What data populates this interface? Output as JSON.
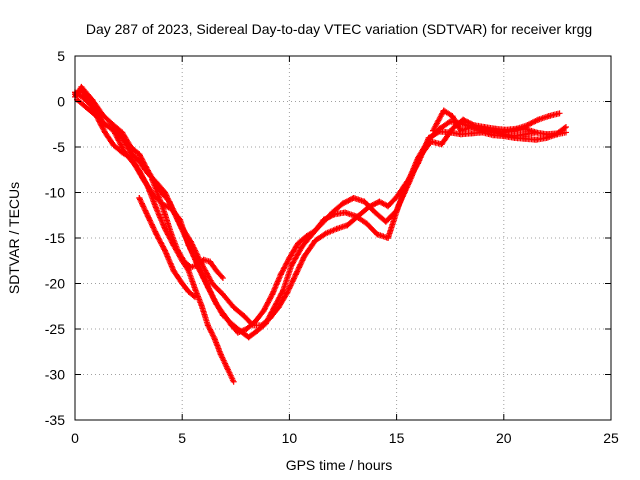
{
  "chart_data": {
    "type": "scatter",
    "title": "Day 287 of 2023, Sidereal Day-to-day VTEC variation (SDTVAR) for receiver krgg",
    "xlabel": "GPS time / hours",
    "ylabel": "SDTVAR / TECUs",
    "xlim": [
      0,
      25
    ],
    "ylim": [
      -35,
      5
    ],
    "xticks": [
      "0",
      "5",
      "10",
      "15",
      "20",
      "25"
    ],
    "yticks": [
      "5",
      "0",
      "-5",
      "-10",
      "-15",
      "-20",
      "-25",
      "-30",
      "-35"
    ],
    "grid": true,
    "legend": "none",
    "marker": "plus",
    "color": "#ff0000",
    "series": [
      {
        "x": [
          0.0,
          0.3,
          0.8,
          1.3,
          1.8,
          2.2,
          2.6,
          3.0,
          3.4,
          3.9,
          4.4,
          4.9,
          5.4,
          5.9,
          6.4,
          6.9,
          7.4,
          7.9,
          8.3,
          8.7,
          9.1,
          9.5,
          9.9,
          10.3,
          10.7,
          11.2,
          11.7,
          12.2,
          12.7,
          13.2,
          13.7,
          14.2,
          14.6,
          15.0,
          15.5,
          16.0,
          16.5,
          17.0,
          17.5,
          18.0,
          18.5,
          19.0,
          19.5,
          20.0,
          20.5,
          21.0,
          21.5,
          22.0,
          22.5,
          22.9
        ],
        "y": [
          0.5,
          1.6,
          0.2,
          -1.5,
          -2.6,
          -3.4,
          -5.0,
          -5.8,
          -7.6,
          -9.6,
          -11.0,
          -13.5,
          -15.4,
          -17.8,
          -20.0,
          -21.2,
          -22.6,
          -23.6,
          -24.6,
          -24.6,
          -23.8,
          -22.6,
          -21.0,
          -19.0,
          -17.0,
          -15.3,
          -14.5,
          -14.0,
          -13.6,
          -12.6,
          -11.6,
          -11.0,
          -11.5,
          -10.5,
          -8.8,
          -6.8,
          -4.0,
          -3.3,
          -3.4,
          -3.6,
          -3.5,
          -3.4,
          -3.7,
          -3.8,
          -4.0,
          -4.1,
          -4.2,
          -4.0,
          -3.6,
          -3.4
        ]
      },
      {
        "x": [
          0.0,
          0.3,
          0.8,
          1.3,
          1.8,
          2.3,
          2.8,
          3.2,
          3.7,
          4.1,
          4.5,
          4.9,
          5.3,
          5.7,
          6.1,
          6.5,
          6.9,
          7.3,
          7.7,
          8.1,
          8.5,
          8.9,
          9.3,
          9.7,
          10.1,
          10.6,
          11.1,
          11.6,
          12.1,
          12.6,
          13.1,
          13.6,
          14.1,
          14.6,
          15.1,
          15.6,
          16.1,
          16.6,
          17.1,
          17.6,
          18.1,
          18.6,
          19.1,
          19.6,
          20.1,
          20.6,
          21.1,
          21.6,
          22.1,
          22.6
        ],
        "y": [
          0.8,
          1.3,
          -0.5,
          -2.3,
          -3.2,
          -5.5,
          -7.0,
          -8.6,
          -10.4,
          -11.3,
          -11.8,
          -13.0,
          -15.8,
          -17.8,
          -19.8,
          -21.8,
          -23.5,
          -24.4,
          -25.2,
          -25.9,
          -25.2,
          -24.4,
          -22.6,
          -20.8,
          -18.0,
          -15.9,
          -14.5,
          -13.0,
          -12.4,
          -12.2,
          -12.6,
          -13.4,
          -14.6,
          -15.0,
          -11.4,
          -8.8,
          -6.0,
          -4.4,
          -4.7,
          -3.0,
          -2.0,
          -2.6,
          -2.8,
          -3.0,
          -3.1,
          -3.0,
          -2.6,
          -2.0,
          -1.6,
          -1.3
        ]
      },
      {
        "x": [
          0.0,
          0.4,
          0.9,
          1.3,
          1.8,
          2.2,
          2.6,
          3.0,
          3.4,
          3.8,
          4.2,
          4.6,
          5.0,
          5.4,
          5.8,
          6.2,
          6.6,
          7.0,
          7.3,
          7.6,
          8.0,
          8.4,
          8.8,
          9.2,
          9.6,
          10.0,
          10.4,
          10.8,
          11.2,
          11.6,
          12.0,
          12.5,
          13.0,
          13.5,
          14.0,
          14.5,
          15.0,
          15.5,
          16.0,
          16.5,
          17.0,
          17.5,
          18.0,
          18.5,
          19.0,
          19.5,
          20.0,
          20.5,
          21.0,
          21.5
        ],
        "y": [
          1.0,
          0.4,
          -0.8,
          -2.4,
          -3.0,
          -4.0,
          -5.6,
          -6.6,
          -7.9,
          -8.9,
          -10.0,
          -12.1,
          -14.1,
          -16.2,
          -18.5,
          -20.4,
          -22.3,
          -23.6,
          -24.6,
          -25.4,
          -25.0,
          -24.2,
          -23.0,
          -21.2,
          -19.0,
          -17.2,
          -15.6,
          -14.8,
          -14.2,
          -13.2,
          -12.2,
          -11.2,
          -10.6,
          -11.0,
          -12.2,
          -13.2,
          -12.0,
          -9.0,
          -6.2,
          -4.2,
          -3.0,
          -2.2,
          -2.4,
          -2.8,
          -3.2,
          -3.4,
          -3.6,
          -3.8,
          -3.6,
          -3.4
        ]
      },
      {
        "x": [
          0.1,
          0.5,
          1.0,
          1.4,
          1.8,
          2.2,
          2.6,
          3.0,
          3.4,
          3.8,
          4.2,
          4.6,
          5.0,
          5.3,
          5.6,
          5.9,
          6.2,
          6.5,
          6.8,
          7.1,
          7.4
        ],
        "y": [
          0.2,
          -0.6,
          -1.6,
          -3.4,
          -4.8,
          -5.6,
          -6.2,
          -7.6,
          -9.4,
          -11.8,
          -14.0,
          -15.8,
          -17.5,
          -18.6,
          -20.6,
          -22.4,
          -24.6,
          -26.0,
          -27.8,
          -29.3,
          -30.8
        ]
      },
      {
        "x": [
          3.6,
          3.9,
          4.2,
          4.5,
          4.8,
          5.1,
          5.4,
          5.7,
          6.0,
          6.3,
          6.6,
          6.9
        ],
        "y": [
          -8.6,
          -10.4,
          -12.4,
          -14.6,
          -16.4,
          -17.6,
          -18.2,
          -18.0,
          -17.4,
          -17.6,
          -18.6,
          -19.4
        ]
      },
      {
        "x": [
          3.0,
          3.4,
          3.8,
          4.2,
          4.6,
          5.0,
          5.3,
          5.6
        ],
        "y": [
          -10.6,
          -12.6,
          -14.6,
          -16.4,
          -18.6,
          -20.0,
          -20.9,
          -21.5
        ]
      },
      {
        "x": [
          16.7,
          17.2,
          17.6,
          18.0,
          18.5,
          19.0,
          19.5,
          20.0,
          20.5,
          21.0,
          21.5,
          22.0,
          22.5,
          22.9
        ],
        "y": [
          -3.2,
          -1.0,
          -1.6,
          -3.2,
          -2.8,
          -3.1,
          -3.3,
          -3.4,
          -3.2,
          -3.0,
          -3.4,
          -3.6,
          -3.5,
          -2.8
        ]
      }
    ]
  }
}
